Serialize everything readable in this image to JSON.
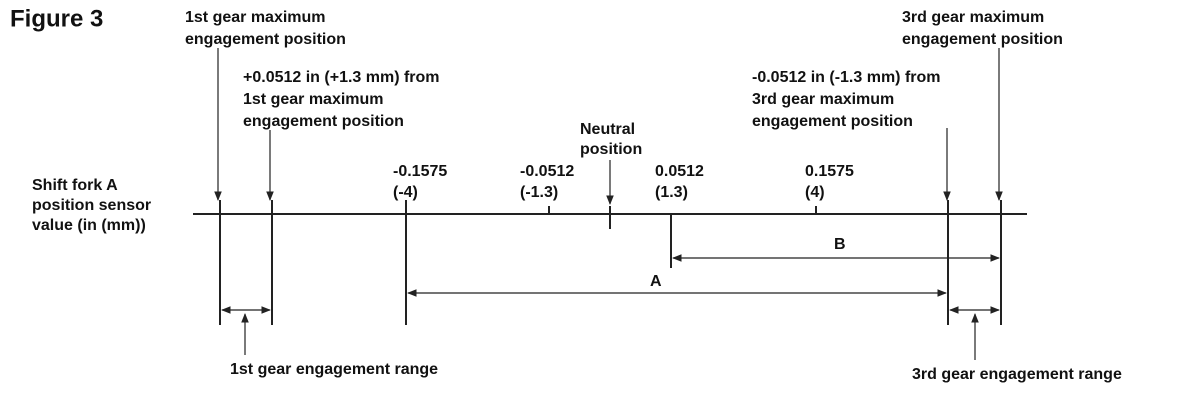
{
  "title": "Figure 3",
  "axis_label": [
    "Shift fork A",
    "position sensor",
    "value (in (mm))"
  ],
  "first_max": [
    "1st gear maximum",
    "engagement position"
  ],
  "first_offset": [
    "+0.0512 in (+1.3 mm) from",
    "1st gear maximum",
    "engagement position"
  ],
  "neutral": [
    "Neutral",
    "position"
  ],
  "ticks": [
    [
      "-0.1575",
      "(-4)"
    ],
    [
      "-0.0512",
      "(-1.3)"
    ],
    [
      "0.0512",
      "(1.3)"
    ],
    [
      "0.1575",
      "(4)"
    ]
  ],
  "third_offset": [
    "-0.0512 in (-1.3 mm) from",
    "3rd gear maximum",
    "engagement position"
  ],
  "third_max": [
    "3rd gear maximum",
    "engagement position"
  ],
  "range_b": "B",
  "range_a": "A",
  "first_range": "1st gear engagement range",
  "third_range": "3rd gear engagement range"
}
